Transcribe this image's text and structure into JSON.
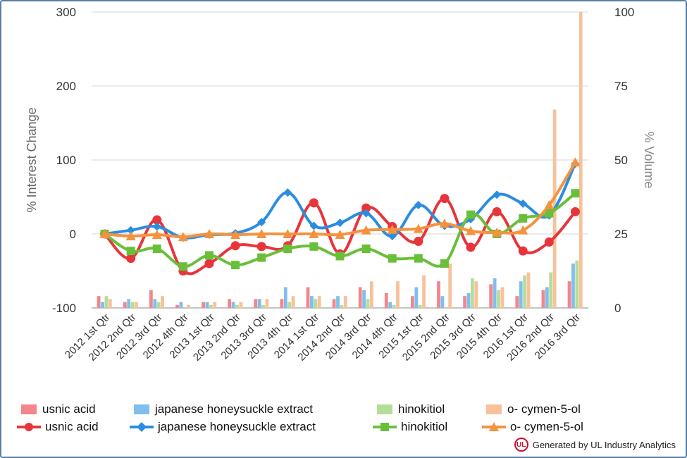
{
  "chart_data": {
    "type": "line",
    "categories": [
      "2012 1st Qtr",
      "2012 2nd Qtr",
      "2012 3rd Qtr",
      "2012 4th Qtr",
      "2013 1st Qtr",
      "2013 2nd Qtr",
      "2013 3rd Qtr",
      "2013 4th Qtr",
      "2014 1st Qtr",
      "2014 2nd Qtr",
      "2014 3rd Qtr",
      "2014 4th Qtr",
      "2015 1st Qtr",
      "2015 2nd Qtr",
      "2015 3rd Qtr",
      "2015 4th Qtr",
      "2016 1st Qtr",
      "2016 2nd Qtr",
      "2016 3rd Qtr"
    ],
    "ylabel": "% Interest Change",
    "y2label": "% Volume",
    "ylim": [
      -100,
      300
    ],
    "y2lim": [
      0,
      100
    ],
    "yticks": [
      "300",
      "200",
      "100",
      "0",
      "-100"
    ],
    "y2ticks": [
      "100",
      "75",
      "50",
      "25",
      "0"
    ],
    "grid": true,
    "legend_position": "bottom",
    "colors": {
      "usnic": "#e8343b",
      "honeysuckle": "#2a8de0",
      "hinokitiol": "#6abf3a",
      "cymen": "#f5923e",
      "usnic_bar": "#f4868b",
      "honeysuckle_bar": "#7fbfee",
      "hinokitiol_bar": "#b5dd9a",
      "cymen_bar": "#f7c29a"
    },
    "line_series": [
      {
        "name": "usnic acid",
        "key": "usnic",
        "marker": "circle",
        "values": [
          0,
          -33,
          19,
          -50,
          -40,
          -16,
          -17,
          -16,
          42,
          -27,
          35,
          10,
          -10,
          48,
          -18,
          30,
          -23,
          -11,
          30
        ]
      },
      {
        "name": "japanese honeysuckle extract",
        "key": "honeysuckle",
        "marker": "diamond",
        "values": [
          0,
          5,
          10,
          -5,
          -1,
          1,
          16,
          56,
          11,
          15,
          28,
          -3,
          39,
          11,
          20,
          53,
          41,
          25,
          95
        ]
      },
      {
        "name": "hinokitiol",
        "key": "hinokitiol",
        "marker": "square",
        "values": [
          0,
          -23,
          -20,
          -44,
          -29,
          -42,
          -32,
          -20,
          -17,
          -30,
          -20,
          -33,
          -33,
          -40,
          26,
          0,
          21,
          28,
          55
        ]
      },
      {
        "name": "o- cymen-5-ol",
        "key": "cymen",
        "marker": "triangle",
        "values": [
          0,
          -3,
          -1,
          -4,
          0,
          -1,
          0,
          0,
          0,
          -1,
          5,
          6,
          7,
          14,
          4,
          2,
          5,
          39,
          97
        ]
      }
    ],
    "bar_series": [
      {
        "name": "usnic acid",
        "key": "usnic_bar",
        "values": [
          4,
          2,
          6,
          1,
          2,
          3,
          3,
          3,
          7,
          3,
          7,
          5,
          4,
          9,
          4,
          8,
          4,
          6,
          9
        ]
      },
      {
        "name": "japanese honeysuckle extract",
        "key": "honeysuckle_bar",
        "values": [
          2,
          3,
          3,
          2,
          2,
          2,
          3,
          7,
          4,
          4,
          6,
          2,
          7,
          4,
          5,
          10,
          9,
          7,
          15
        ]
      },
      {
        "name": "hinokitiol",
        "key": "hinokitiol_bar",
        "values": [
          4,
          2,
          2,
          0,
          1,
          1,
          1,
          2,
          3,
          1,
          3,
          1,
          1,
          0,
          10,
          6,
          11,
          12,
          16
        ]
      },
      {
        "name": "o- cymen-5-ol",
        "key": "cymen_bar",
        "values": [
          3,
          2,
          4,
          1,
          2,
          2,
          3,
          4,
          4,
          4,
          9,
          9,
          11,
          15,
          9,
          7,
          12,
          67,
          100
        ]
      }
    ]
  },
  "legend": {
    "bars": [
      "usnic acid",
      "japanese honeysuckle extract",
      "hinokitiol",
      "o- cymen-5-ol"
    ],
    "lines": [
      "usnic acid",
      "japanese honeysuckle extract",
      "hinokitiol",
      "o- cymen-5-ol"
    ]
  },
  "credit": {
    "logo_text": "UL",
    "text": "Generated by UL Industry Analytics"
  }
}
